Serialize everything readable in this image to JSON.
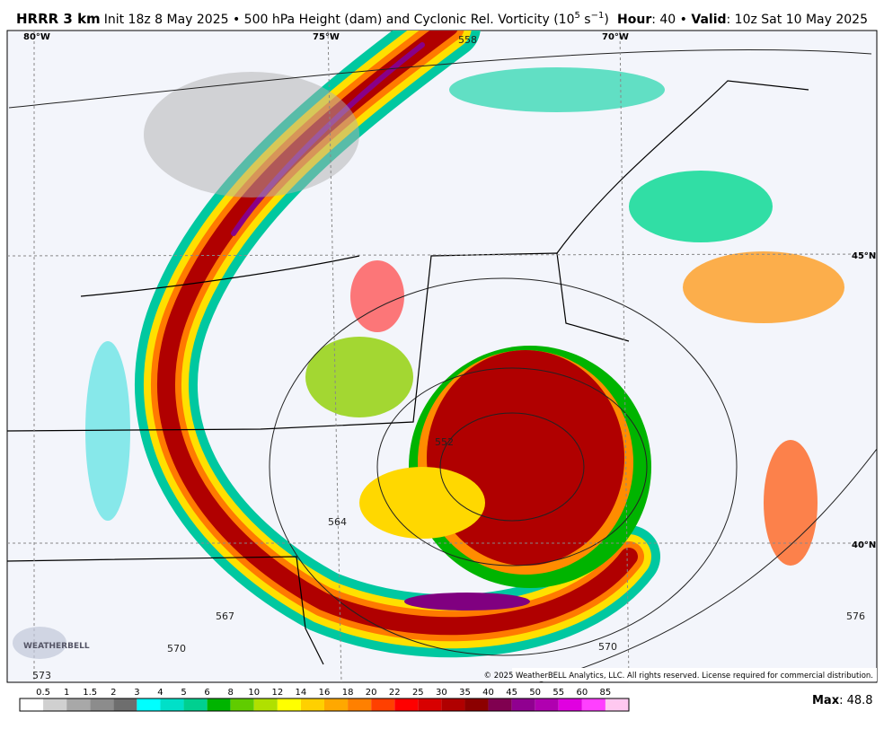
{
  "header": {
    "model": "HRRR 3 km",
    "description": "Init 18z 8 May 2025 • 500 hPa Height (dam) and Cyclonic Rel. Vorticity (10",
    "exponent": "5",
    "unit_mid": " s",
    "unit_exp": "−1",
    "unit_end": ")",
    "hour_label": "Hour",
    "hour_value": ": 40 • ",
    "valid_label": "Valid",
    "valid_value": ": 10z Sat 10 May 2025"
  },
  "map": {
    "graticule": [
      "80°W",
      "75°W",
      "70°W",
      "45°N",
      "40°N"
    ],
    "contours": [
      "558",
      "552",
      "564",
      "570",
      "576",
      "567",
      "573"
    ],
    "logo": "WEATHERBELL",
    "copyright": "© 2025 WeatherBELL Analytics, LLC. All rights reserved. License required for commercial distribution."
  },
  "colorbar": {
    "labels": [
      "0.5",
      "1",
      "1.5",
      "2",
      "3",
      "4",
      "5",
      "6",
      "8",
      "10",
      "12",
      "14",
      "16",
      "18",
      "20",
      "22",
      "25",
      "30",
      "35",
      "40",
      "45",
      "50",
      "55",
      "60",
      "85"
    ]
  },
  "max": {
    "label": "Max",
    "value": ": 48.8"
  }
}
